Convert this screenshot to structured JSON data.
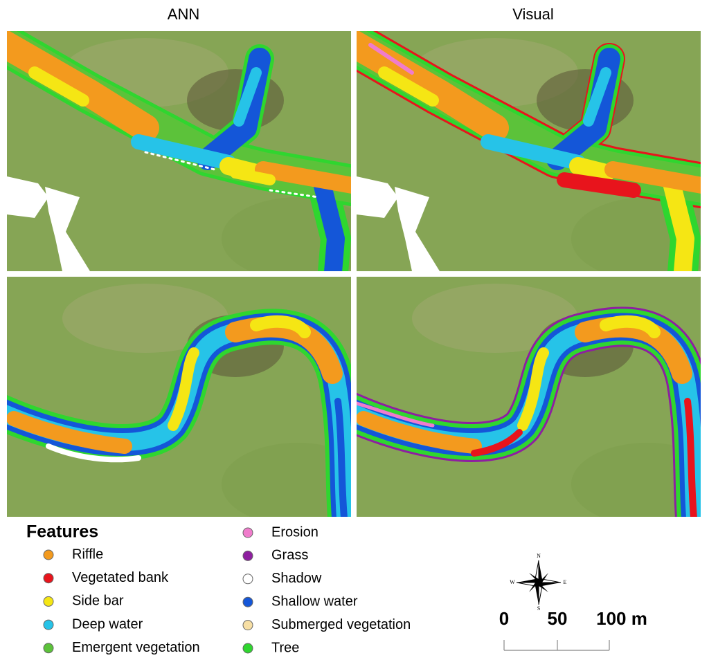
{
  "titles": [
    "ANN",
    "Visual"
  ],
  "legend": {
    "title": "Features",
    "items": [
      {
        "name": "Riffle",
        "color": "#f39a1e"
      },
      {
        "name": "Vegetated bank",
        "color": "#e8141c"
      },
      {
        "name": "Side bar",
        "color": "#f5e614"
      },
      {
        "name": "Deep water",
        "color": "#26c3e8"
      },
      {
        "name": "Emergent vegetation",
        "color": "#5cc23a"
      },
      {
        "name": "Erosion",
        "color": "#f07ccc"
      },
      {
        "name": "Grass",
        "color": "#8e1fa0"
      },
      {
        "name": "Shadow",
        "color": "#ffffff"
      },
      {
        "name": "Shallow water",
        "color": "#1456d8"
      },
      {
        "name": "Submerged vegetation",
        "color": "#f7dfa4"
      },
      {
        "name": "Tree",
        "color": "#2fd62f"
      }
    ]
  },
  "scale_bar": {
    "labels": [
      "0",
      "50",
      "100 m"
    ]
  },
  "compass": {
    "labels": [
      "N",
      "E",
      "S",
      "W"
    ]
  }
}
